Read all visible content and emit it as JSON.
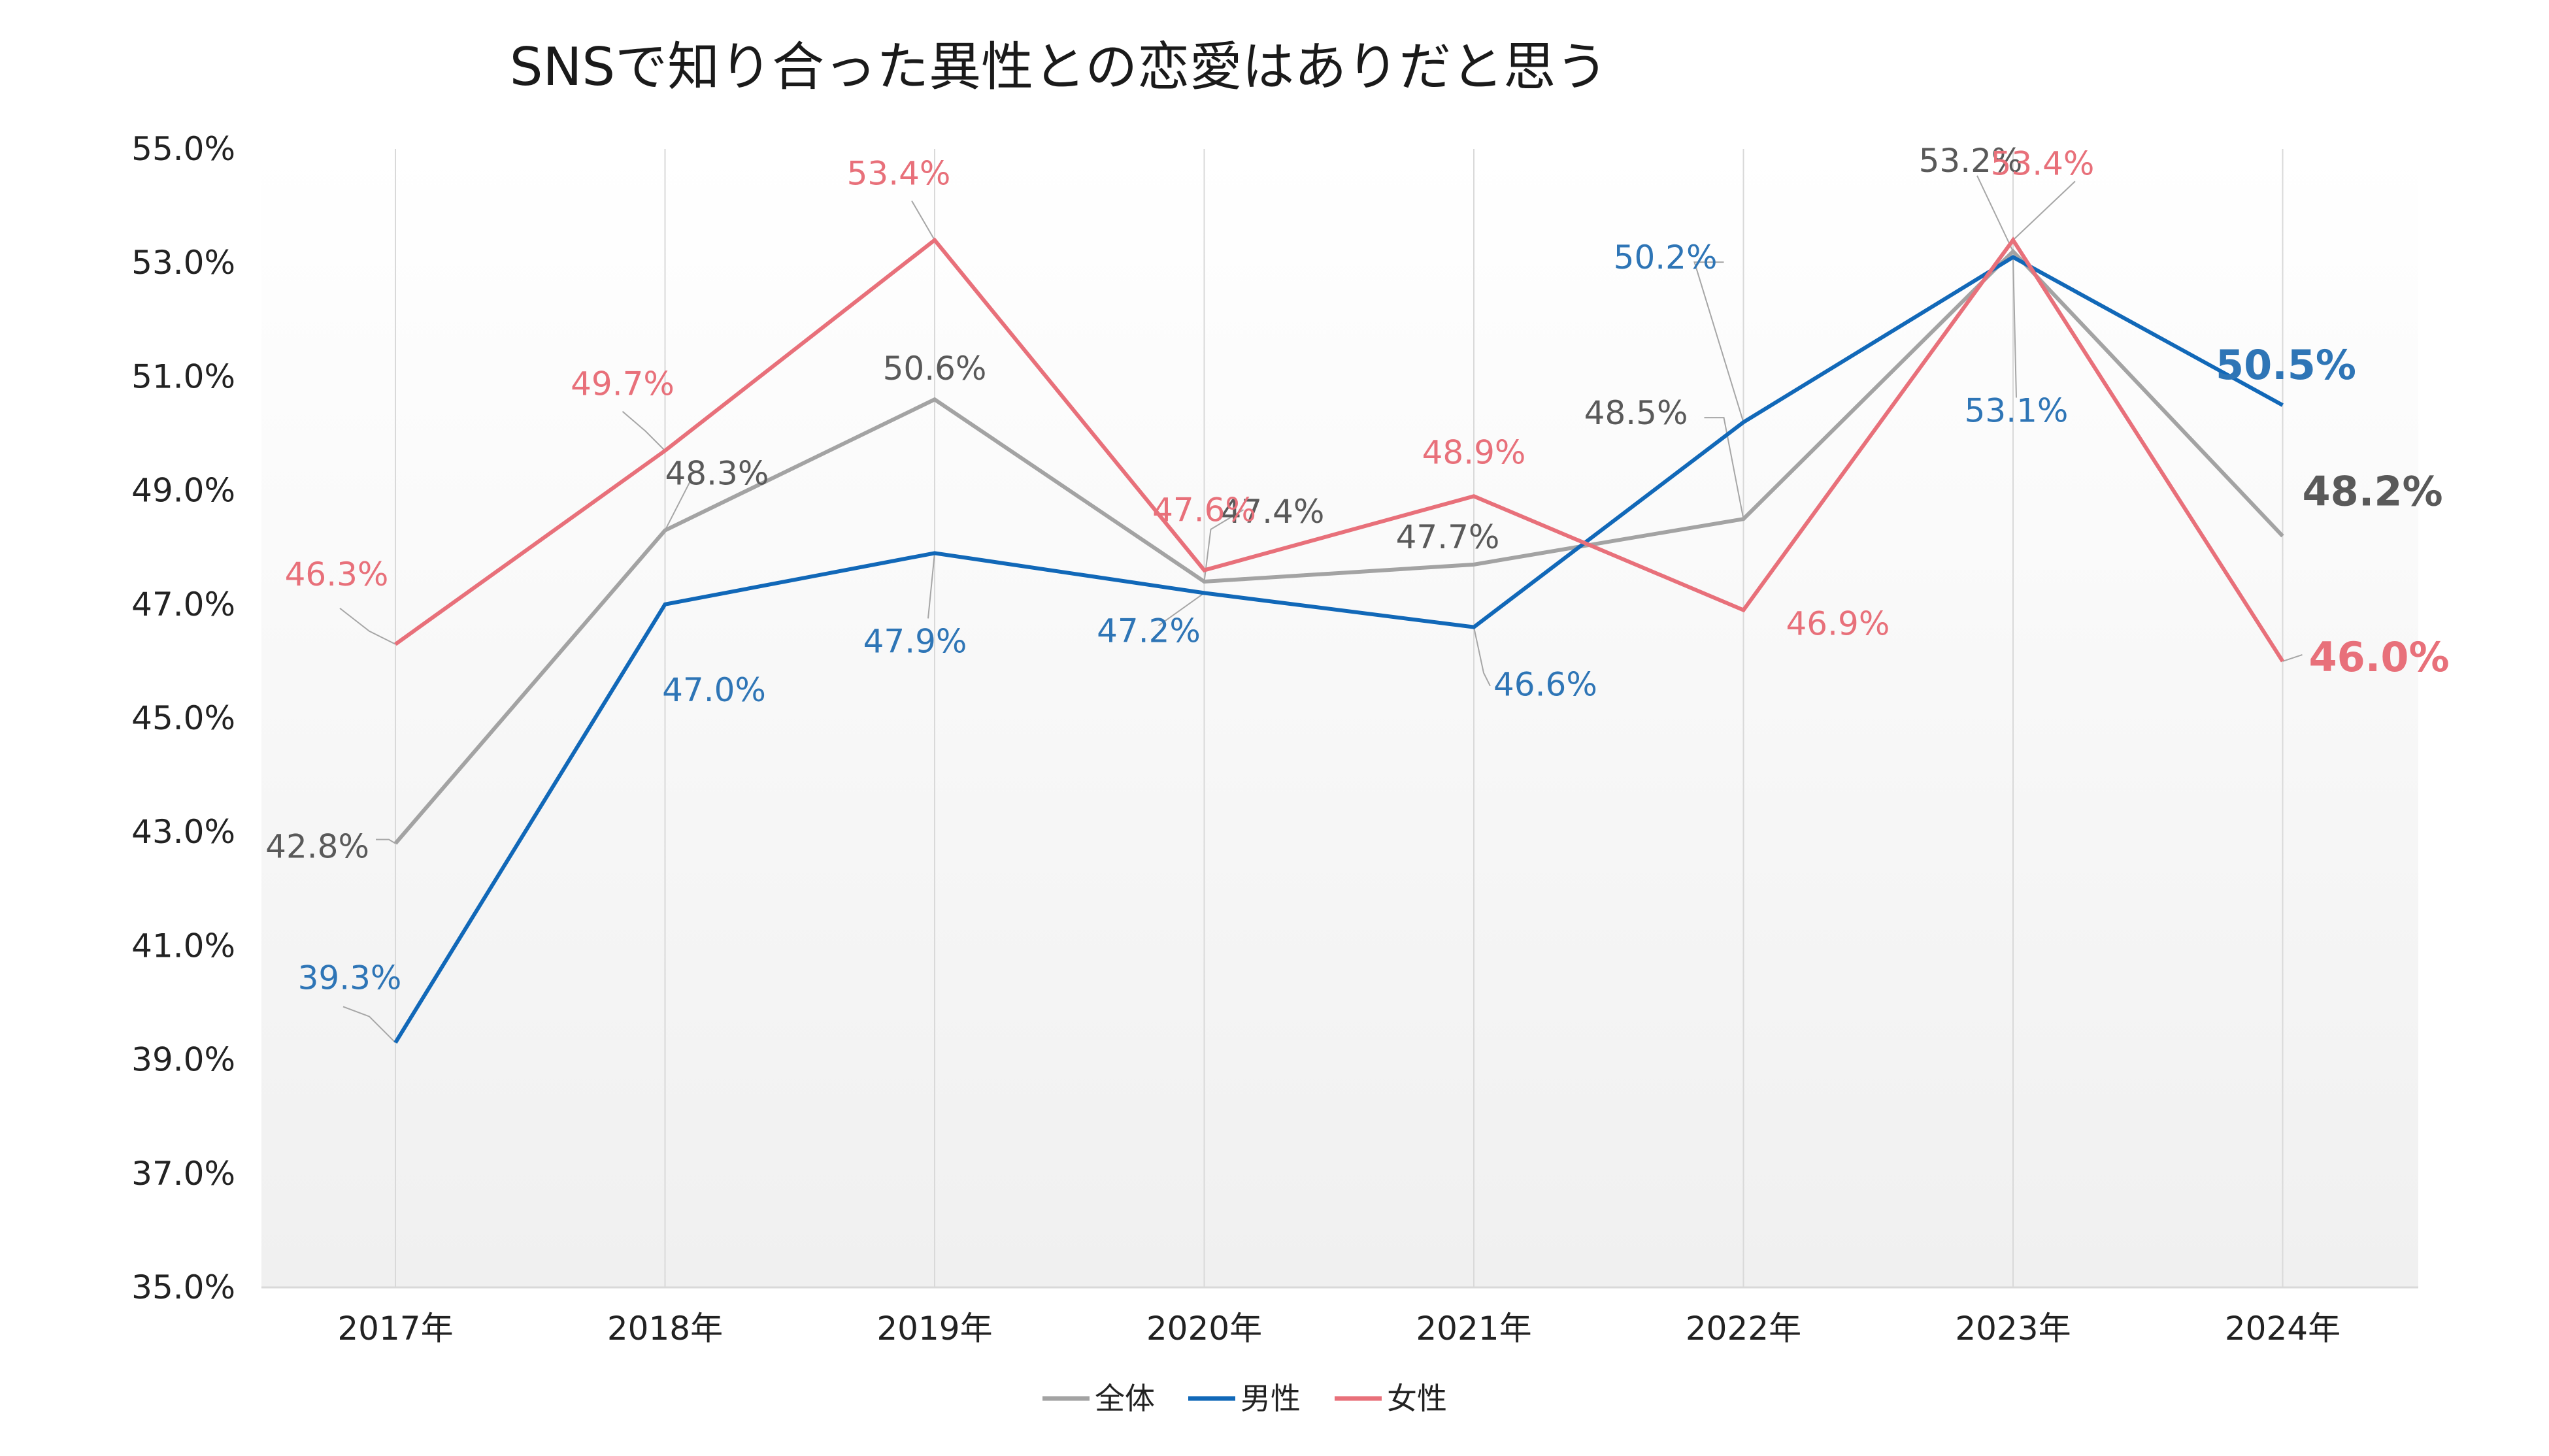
{
  "chart_data": {
    "type": "line",
    "title": "SNSで知り合った異性との恋愛はありだと思う",
    "categories": [
      "2017年",
      "2018年",
      "2019年",
      "2020年",
      "2021年",
      "2022年",
      "2023年",
      "2024年"
    ],
    "ylim": [
      35.0,
      55.0
    ],
    "yticks": [
      "35.0%",
      "37.0%",
      "39.0%",
      "41.0%",
      "43.0%",
      "45.0%",
      "47.0%",
      "49.0%",
      "51.0%",
      "53.0%",
      "55.0%"
    ],
    "ytick_values": [
      35,
      37,
      39,
      41,
      43,
      45,
      47,
      49,
      51,
      53,
      55
    ],
    "series": [
      {
        "name": "全体",
        "color": "#a3a3a3",
        "label_color": "#595959",
        "values": [
          42.8,
          48.3,
          50.6,
          47.4,
          47.7,
          48.5,
          53.2,
          48.2
        ],
        "labels": [
          "42.8%",
          "48.3%",
          "50.6%",
          "47.4%",
          "47.7%",
          "48.5%",
          "53.2%",
          "48.2%"
        ]
      },
      {
        "name": "男性",
        "color": "#1168b8",
        "label_color": "#2e75b6",
        "values": [
          39.3,
          47.0,
          47.9,
          47.2,
          46.6,
          50.2,
          53.1,
          50.5
        ],
        "labels": [
          "39.3%",
          "47.0%",
          "47.9%",
          "47.2%",
          "46.6%",
          "50.2%",
          "53.1%",
          "50.5%"
        ]
      },
      {
        "name": "女性",
        "color": "#e8707a",
        "label_color": "#e8707a",
        "values": [
          46.3,
          49.7,
          53.4,
          47.6,
          48.9,
          46.9,
          53.4,
          46.0
        ],
        "labels": [
          "46.3%",
          "49.7%",
          "53.4%",
          "47.6%",
          "48.9%",
          "46.9%",
          "53.4%",
          "46.0%"
        ]
      }
    ],
    "legend_position": "bottom-center",
    "grid": "vertical"
  }
}
